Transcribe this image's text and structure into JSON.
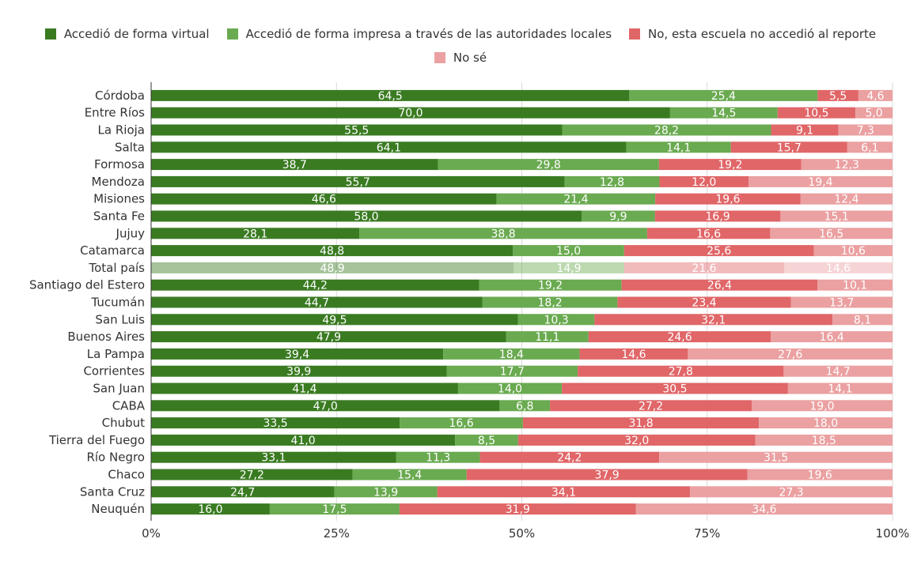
{
  "chart_data": {
    "type": "bar",
    "orientation": "horizontal",
    "stacked": "percent",
    "categories": [
      "Córdoba",
      "Entre Ríos",
      "La Rioja",
      "Salta",
      "Formosa",
      "Mendoza",
      "Misiones",
      "Santa Fe",
      "Jujuy",
      "Catamarca",
      "Total país",
      "Santiago del Estero",
      "Tucumán",
      "San Luis",
      "Buenos Aires",
      "La Pampa",
      "Corrientes",
      "San Juan",
      "CABA",
      "Chubut",
      "Tierra del Fuego",
      "Río Negro",
      "Chaco",
      "Santa Cruz",
      "Neuquén"
    ],
    "series": [
      {
        "name": "Accedió de forma virtual",
        "color": "#3a7b22",
        "values": [
          64.5,
          70.0,
          55.5,
          64.1,
          38.7,
          55.7,
          46.6,
          58.0,
          28.1,
          48.8,
          48.9,
          44.2,
          44.7,
          49.5,
          47.9,
          39.4,
          39.9,
          41.4,
          47.0,
          33.5,
          41.0,
          33.1,
          27.2,
          24.7,
          16.0
        ]
      },
      {
        "name": "Accedió de forma impresa a través de las autoridades locales",
        "color": "#6aaa50",
        "values": [
          25.4,
          14.5,
          28.2,
          14.1,
          29.8,
          12.8,
          21.4,
          9.9,
          38.8,
          15.0,
          14.9,
          19.2,
          18.2,
          10.3,
          11.1,
          18.4,
          17.7,
          14.0,
          6.8,
          16.6,
          8.5,
          11.3,
          15.4,
          13.9,
          17.5
        ]
      },
      {
        "name": "No, esta escuela no accedió al reporte",
        "color": "#e06668",
        "values": [
          5.5,
          10.5,
          9.1,
          15.7,
          19.2,
          12.0,
          19.6,
          16.9,
          16.6,
          25.6,
          21.6,
          26.4,
          23.4,
          32.1,
          24.6,
          14.6,
          27.8,
          30.5,
          27.2,
          31.8,
          32.0,
          24.2,
          37.9,
          34.1,
          31.9
        ]
      },
      {
        "name": "No sé",
        "color": "#eba0a1",
        "values": [
          4.6,
          5.0,
          7.3,
          6.1,
          12.3,
          19.4,
          12.4,
          15.1,
          16.5,
          10.6,
          14.6,
          10.1,
          13.7,
          8.1,
          16.4,
          27.6,
          14.7,
          14.1,
          19.0,
          18.0,
          18.5,
          31.5,
          19.6,
          27.3,
          34.6
        ]
      }
    ],
    "highlighted_category": "Total país",
    "x_ticks": [
      "0%",
      "25%",
      "50%",
      "75%",
      "100%"
    ],
    "xlim": [
      0,
      100
    ],
    "legend_position": "top",
    "grid": true,
    "title": "",
    "xlabel": "",
    "ylabel": ""
  }
}
